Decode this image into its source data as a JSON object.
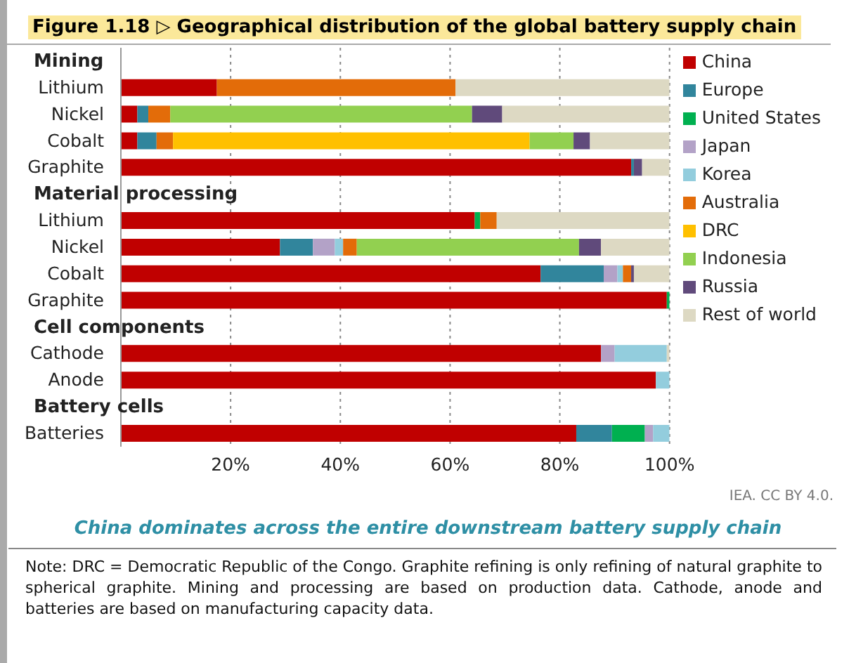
{
  "chart_data": {
    "type": "bar",
    "orientation": "horizontal",
    "stacked": true,
    "title": "Figure 1.18 ▷ Geographical distribution of the global battery supply chain",
    "categories": [
      "Mining",
      "Lithium",
      "Nickel",
      "Cobalt",
      "Graphite",
      "Material processing",
      "Lithium",
      "Nickel",
      "Cobalt",
      "Graphite",
      "Cell components",
      "Cathode",
      "Anode",
      "Battery cells",
      "Batteries"
    ],
    "series": [
      {
        "name": "China",
        "color": "#c00000",
        "values": [
          null,
          17.5,
          3,
          3,
          93,
          null,
          64.5,
          29,
          76.5,
          99.5,
          null,
          87.5,
          97.5,
          null,
          83
        ]
      },
      {
        "name": "Europe",
        "color": "#31859c",
        "values": [
          null,
          null,
          2,
          3.5,
          0.5,
          null,
          null,
          6,
          11.5,
          null,
          null,
          null,
          null,
          null,
          6.5
        ]
      },
      {
        "name": "United States",
        "color": "#00b050",
        "values": [
          null,
          null,
          null,
          null,
          null,
          null,
          1,
          null,
          null,
          0.5,
          null,
          null,
          null,
          null,
          6
        ]
      },
      {
        "name": "Japan",
        "color": "#b3a2c7",
        "values": [
          null,
          null,
          null,
          null,
          null,
          null,
          null,
          4,
          2.5,
          null,
          null,
          2.5,
          null,
          null,
          1.5
        ]
      },
      {
        "name": "Korea",
        "color": "#93cddd",
        "values": [
          null,
          null,
          null,
          null,
          null,
          null,
          null,
          1.5,
          1,
          null,
          null,
          9.5,
          2.5,
          null,
          3
        ]
      },
      {
        "name": "Australia",
        "color": "#e36c09",
        "values": [
          null,
          43.5,
          4,
          3,
          null,
          null,
          3,
          2.5,
          1.5,
          null,
          null,
          null,
          null,
          null,
          null
        ]
      },
      {
        "name": "DRC",
        "color": "#ffc000",
        "values": [
          null,
          null,
          null,
          65,
          null,
          null,
          null,
          null,
          null,
          null,
          null,
          null,
          null,
          null,
          null
        ]
      },
      {
        "name": "Indonesia",
        "color": "#92d050",
        "values": [
          null,
          null,
          55,
          8,
          null,
          null,
          null,
          40.5,
          null,
          null,
          null,
          null,
          null,
          null,
          null
        ]
      },
      {
        "name": "Russia",
        "color": "#604a7b",
        "values": [
          null,
          null,
          5.5,
          3,
          1.5,
          null,
          null,
          4,
          0.5,
          null,
          null,
          null,
          null,
          null,
          null
        ]
      },
      {
        "name": "Rest of world",
        "color": "#ddd9c3",
        "values": [
          null,
          39,
          30.5,
          14.5,
          5,
          null,
          31.5,
          12.5,
          6.5,
          null,
          null,
          0.5,
          null,
          null,
          null
        ]
      }
    ],
    "xlim": [
      0,
      100
    ],
    "xticks": [
      {
        "value": 20,
        "label": "20%"
      },
      {
        "value": 40,
        "label": "40%"
      },
      {
        "value": 60,
        "label": "60%"
      },
      {
        "value": 80,
        "label": "80%"
      },
      {
        "value": 100,
        "label": "100%"
      }
    ],
    "grid": "x",
    "legend": "right",
    "annotations": [
      "IEA. CC BY 4.0.",
      "China dominates across the entire downstream battery supply chain",
      "Note: DRC = Democratic Republic of the Congo. Graphite refining is only refining of natural graphite to spherical graphite. Mining and processing are based on production data. Cathode, anode and batteries are based on manufacturing capacity data."
    ]
  }
}
